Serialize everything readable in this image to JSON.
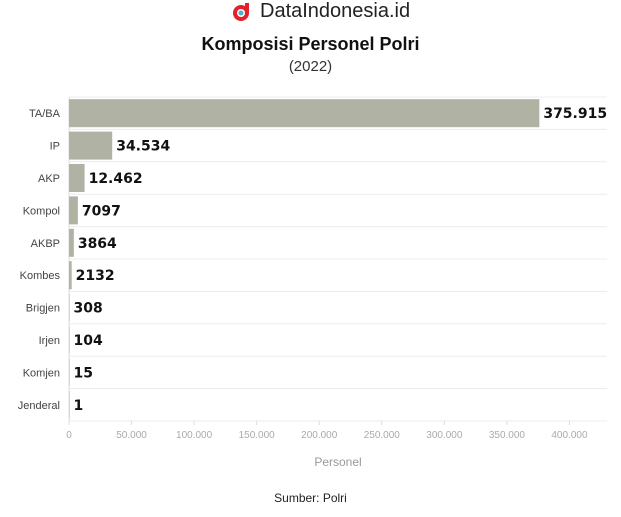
{
  "brand": {
    "name": "DataIndonesia.id",
    "accent": "#e4202a"
  },
  "chart_data": {
    "type": "bar",
    "orientation": "horizontal",
    "title": "Komposisi Personel Polri",
    "subtitle": "(2022)",
    "categories": [
      "TA/BA",
      "IP",
      "AKP",
      "Kompol",
      "AKBP",
      "Kombes",
      "Brigjen",
      "Irjen",
      "Komjen",
      "Jenderal"
    ],
    "values": [
      375915,
      34534,
      12462,
      7097,
      3864,
      2132,
      308,
      104,
      15,
      1
    ],
    "value_labels": [
      "375.915",
      "34.534",
      "12.462",
      "7097",
      "3864",
      "2132",
      "308",
      "104",
      "15",
      "1"
    ],
    "xlabel": "Personel",
    "ylabel": "",
    "xlim": [
      0,
      430000
    ],
    "xticks": [
      0,
      50000,
      100000,
      150000,
      200000,
      250000,
      300000,
      350000,
      400000
    ],
    "xtick_labels": [
      "0",
      "50.000",
      "100.000",
      "150.000",
      "200.000",
      "250.000",
      "300.000",
      "350.000",
      "400.000"
    ],
    "grid": true,
    "bar_color": "#b0b2a3",
    "source": "Sumber: Polri"
  }
}
